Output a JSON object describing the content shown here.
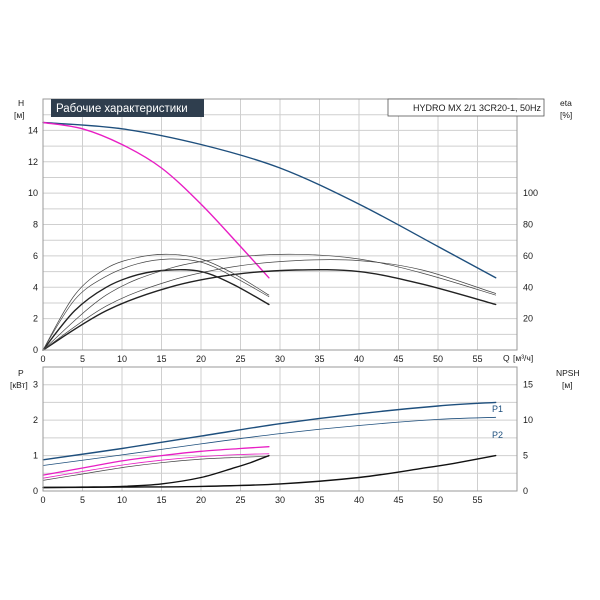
{
  "chart_data": [
    {
      "type": "line",
      "title": "Рабочие характеристики",
      "subtitle": "HYDRO MX 2/1 3CR20-1, 50Hz",
      "ylabel": "H",
      "yunit": "[м]",
      "y2label": "eta",
      "y2unit": "[%]",
      "xlabel": "Q",
      "xunit": "[м³/ч]",
      "xlim": [
        0,
        60
      ],
      "ylim": [
        0,
        16
      ],
      "y2lim": [
        0,
        160
      ],
      "xticks": [
        0,
        5,
        10,
        15,
        20,
        25,
        30,
        35,
        40,
        45,
        50,
        55
      ],
      "yticks": [
        0,
        2,
        4,
        6,
        8,
        10,
        12,
        14
      ],
      "y2ticks": [
        20,
        40,
        60,
        80,
        100
      ],
      "grid": true,
      "colors": {
        "head_full": "#1e4f7d",
        "head_single": "#e81ec4",
        "eta": "#222222",
        "grid": "#cfcfcf"
      },
      "series": [
        {
          "axis": "y",
          "color": "#1e4f7d",
          "width": 1.4,
          "x": [
            0,
            10,
            20,
            30,
            40,
            50,
            57.3
          ],
          "y": [
            14.5,
            14.1,
            13.1,
            11.6,
            9.3,
            6.6,
            4.6
          ]
        },
        {
          "axis": "y",
          "color": "#e81ec4",
          "width": 1.4,
          "x": [
            0,
            5,
            10,
            15,
            20,
            25,
            28.6
          ],
          "y": [
            14.5,
            14.1,
            13.1,
            11.6,
            9.3,
            6.6,
            4.6
          ]
        },
        {
          "axis": "y2",
          "color": "#222222",
          "width": 1.4,
          "x": [
            0,
            4,
            8,
            12,
            16,
            20,
            24,
            28.6
          ],
          "y": [
            0,
            25,
            40,
            48,
            51,
            50,
            42,
            29
          ]
        },
        {
          "axis": "y2",
          "color": "#222222",
          "width": 1.4,
          "x": [
            0,
            8,
            16,
            24,
            32,
            40,
            48,
            57.3
          ],
          "y": [
            0,
            25,
            40,
            48,
            51,
            50,
            42,
            29
          ]
        },
        {
          "axis": "y2",
          "color": "#444444",
          "width": 0.7,
          "x": [
            0,
            4,
            8,
            12,
            16,
            20,
            24,
            28.6
          ],
          "y": [
            0,
            35,
            52,
            59,
            61,
            58,
            49,
            35
          ]
        },
        {
          "axis": "y2",
          "color": "#444444",
          "width": 0.7,
          "x": [
            0,
            8,
            16,
            24,
            32,
            40,
            48,
            57.3
          ],
          "y": [
            0,
            35,
            52,
            59,
            61,
            58,
            49,
            35
          ]
        },
        {
          "axis": "y2",
          "color": "#444444",
          "width": 0.7,
          "x": [
            0,
            4,
            8,
            12,
            16,
            20,
            24,
            28.6
          ],
          "y": [
            0,
            32,
            47,
            55,
            58,
            56,
            47,
            34
          ]
        },
        {
          "axis": "y2",
          "color": "#444444",
          "width": 0.7,
          "x": [
            0,
            8,
            16,
            24,
            32,
            40,
            48,
            57.3
          ],
          "y": [
            0,
            28,
            44,
            53,
            57,
            57,
            51,
            36
          ]
        }
      ]
    },
    {
      "type": "line",
      "ylabel": "P",
      "yunit": "[кВт]",
      "y2label": "NPSH",
      "y2unit": "[м]",
      "xlim": [
        0,
        60
      ],
      "ylim": [
        0,
        3.5
      ],
      "y2lim": [
        0,
        17.5
      ],
      "yticks": [
        0,
        1,
        2,
        3
      ],
      "y2ticks": [
        0,
        5,
        10,
        15
      ],
      "grid": true,
      "series": [
        {
          "name": "P1",
          "axis": "y",
          "color": "#1e4f7d",
          "width": 1.4,
          "x": [
            0,
            10,
            20,
            30,
            40,
            50,
            57.3
          ],
          "y": [
            0.88,
            1.2,
            1.55,
            1.9,
            2.18,
            2.4,
            2.5
          ]
        },
        {
          "name": "P2",
          "axis": "y",
          "color": "#1e4f7d",
          "width": 0.8,
          "x": [
            0,
            10,
            20,
            30,
            40,
            50,
            57.3
          ],
          "y": [
            0.72,
            1.02,
            1.33,
            1.62,
            1.85,
            2.02,
            2.08
          ]
        },
        {
          "axis": "y",
          "color": "#e81ec4",
          "width": 1.3,
          "x": [
            0,
            5,
            10,
            15,
            20,
            25,
            28.6
          ],
          "y": [
            0.45,
            0.65,
            0.85,
            1.0,
            1.12,
            1.2,
            1.25
          ]
        },
        {
          "axis": "y",
          "color": "#e81ec4",
          "width": 0.8,
          "x": [
            0,
            5,
            10,
            15,
            20,
            25,
            28.6
          ],
          "y": [
            0.36,
            0.55,
            0.73,
            0.87,
            0.97,
            1.03,
            1.05
          ]
        },
        {
          "axis": "y",
          "color": "#444444",
          "width": 0.7,
          "x": [
            0,
            5,
            10,
            15,
            20,
            25,
            28.6
          ],
          "y": [
            0.3,
            0.48,
            0.66,
            0.8,
            0.9,
            0.95,
            0.98
          ]
        },
        {
          "axis": "y2",
          "color": "#111111",
          "width": 1.4,
          "x": [
            0,
            5,
            10,
            15,
            20,
            24,
            26,
            28.6
          ],
          "y": [
            0.5,
            0.55,
            0.65,
            1.0,
            1.9,
            3.2,
            3.9,
            5.0
          ]
        },
        {
          "axis": "y2",
          "color": "#111111",
          "width": 1.4,
          "x": [
            0,
            10,
            20,
            30,
            40,
            48,
            52,
            57.3
          ],
          "y": [
            0.5,
            0.55,
            0.65,
            1.0,
            1.9,
            3.2,
            3.9,
            5.0
          ]
        }
      ]
    }
  ]
}
